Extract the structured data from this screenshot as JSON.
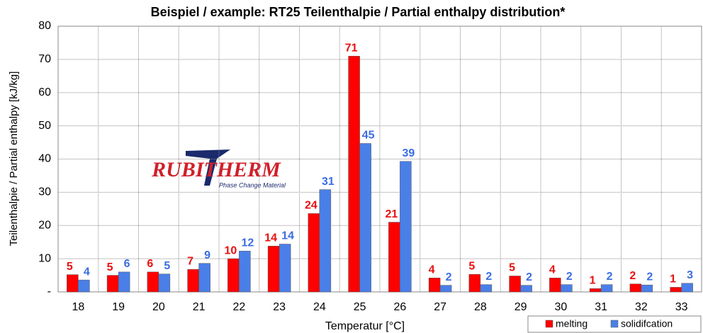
{
  "chart_data": {
    "type": "bar",
    "title": "Beispiel / example: RT25 Teilenthalpie / Partial enthalpy distribution*",
    "x_label": "Temperatur [°C]",
    "y_label": "Teilenthalpie / Partial enthalpy [kJ/kg]",
    "categories": [
      "18",
      "19",
      "20",
      "21",
      "22",
      "23",
      "24",
      "25",
      "26",
      "27",
      "28",
      "29",
      "30",
      "31",
      "32",
      "33"
    ],
    "series": [
      {
        "name": "melting",
        "color": "#ff0000",
        "label_color": "#e81010",
        "values": [
          5.2,
          5.0,
          6.0,
          6.8,
          10.0,
          13.8,
          23.6,
          71.0,
          21.0,
          4.2,
          5.3,
          4.8,
          4.2,
          1.0,
          2.4,
          1.4
        ],
        "value_labels": [
          "5",
          "5",
          "6",
          "7",
          "10",
          "14",
          "24",
          "71",
          "21",
          "4",
          "5",
          "5",
          "4",
          "1",
          "2",
          "1"
        ]
      },
      {
        "name": "solidifcation",
        "color": "#4a7fe8",
        "label_color": "#3a6ee0",
        "values": [
          3.6,
          6.0,
          5.4,
          8.6,
          12.3,
          14.4,
          30.8,
          44.7,
          39.3,
          2.0,
          2.2,
          2.0,
          2.2,
          2.2,
          2.1,
          2.6
        ],
        "value_labels": [
          "4",
          "6",
          "5",
          "9",
          "12",
          "14",
          "31",
          "45",
          "39",
          "2",
          "2",
          "2",
          "2",
          "2",
          "2",
          "3"
        ]
      }
    ],
    "ylim": [
      0,
      80
    ],
    "yticks": [
      {
        "value": 0,
        "label": "-"
      },
      10,
      20,
      30,
      40,
      50,
      60,
      70,
      80
    ],
    "grid": true,
    "legend": "bottom-right",
    "logo": {
      "text": "RUBITHERM",
      "subtitle": "Phase Change Material"
    }
  }
}
